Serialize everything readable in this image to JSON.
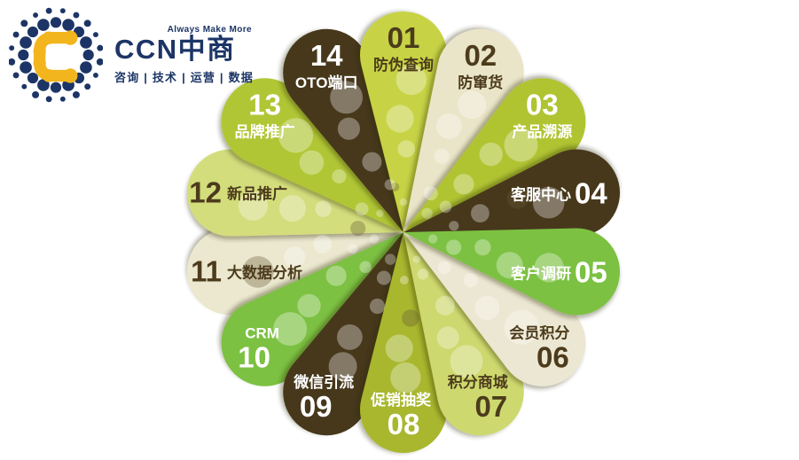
{
  "logo": {
    "tagline_top": "Always Make More",
    "brand": "CCN中商",
    "tagline_bottom": "咨询 | 技术 | 运营 | 数据",
    "navy": "#1c3566",
    "yellow": "#f2b51d"
  },
  "diagram": {
    "petals": [
      {
        "number": "01",
        "label": "防伪查询",
        "color": "#c7d345",
        "text_color": "#4c3b1c",
        "layout": "num-top"
      },
      {
        "number": "02",
        "label": "防窜货",
        "color": "#eae5c8",
        "text_color": "#4c3b1c",
        "layout": "num-top"
      },
      {
        "number": "03",
        "label": "产品溯源",
        "color": "#b0c431",
        "text_color": "#ffffff",
        "layout": "num-top"
      },
      {
        "number": "04",
        "label": "客服中心",
        "color": "#47391f",
        "text_color": "#ffffff",
        "layout": "inline-label-first"
      },
      {
        "number": "05",
        "label": "客户调研",
        "color": "#7cc142",
        "text_color": "#ffffff",
        "layout": "inline-label-first"
      },
      {
        "number": "06",
        "label": "会员积分",
        "color": "#ece7d2",
        "text_color": "#4c3b1c",
        "layout": "label-top"
      },
      {
        "number": "07",
        "label": "积分商城",
        "color": "#cdd96e",
        "text_color": "#4c3b1c",
        "layout": "label-top"
      },
      {
        "number": "08",
        "label": "促销抽奖",
        "color": "#a8b72f",
        "text_color": "#ffffff",
        "layout": "label-top"
      },
      {
        "number": "09",
        "label": "微信引流",
        "color": "#47391f",
        "text_color": "#ffffff",
        "layout": "label-top"
      },
      {
        "number": "10",
        "label": "CRM",
        "color": "#7cc142",
        "text_color": "#ffffff",
        "layout": "label-top"
      },
      {
        "number": "11",
        "label": "大数据分析",
        "color": "#ebe8cf",
        "text_color": "#4c3b1c",
        "layout": "inline-num-first"
      },
      {
        "number": "12",
        "label": "新品推广",
        "color": "#d3dd7b",
        "text_color": "#4c3b1c",
        "layout": "inline-num-first"
      },
      {
        "number": "13",
        "label": "品牌推广",
        "color": "#b1c634",
        "text_color": "#ffffff",
        "layout": "num-top"
      },
      {
        "number": "14",
        "label": "OTO端口",
        "color": "#47391f",
        "text_color": "#ffffff",
        "layout": "num-top"
      }
    ]
  }
}
